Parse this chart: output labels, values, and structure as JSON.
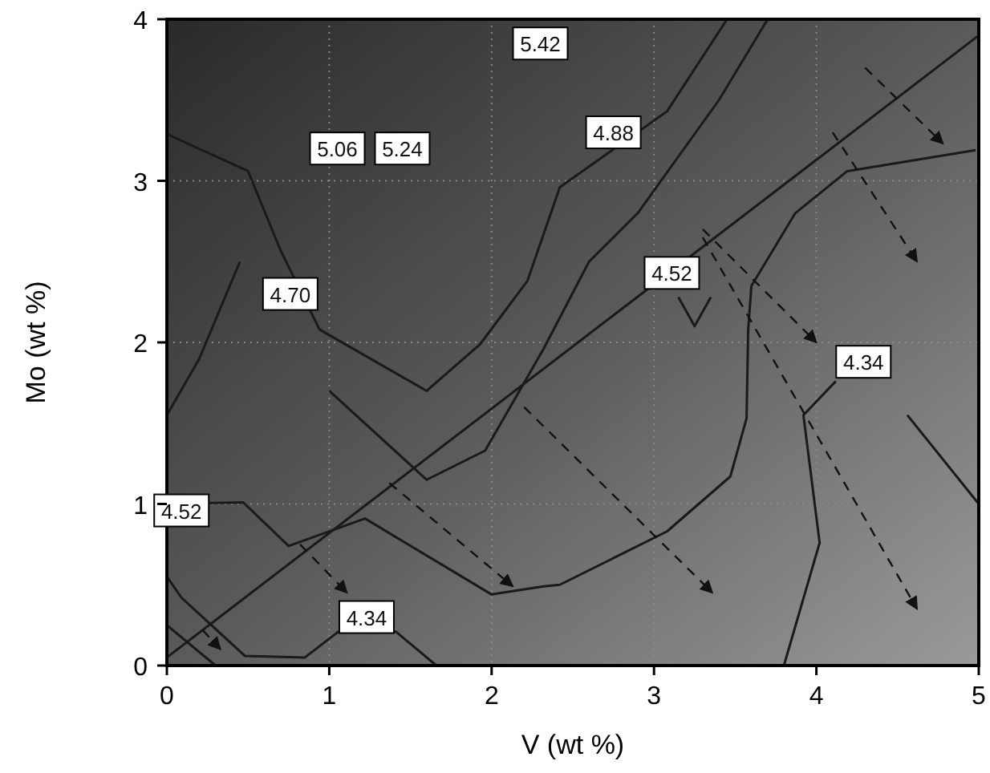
{
  "chart_data": {
    "type": "line",
    "xlabel": "V (wt %)",
    "ylabel": "Mo (wt %)",
    "xlim": [
      0,
      5
    ],
    "ylim": [
      0,
      4
    ],
    "xticks": [
      0,
      1,
      2,
      3,
      4,
      5
    ],
    "yticks": [
      0,
      1,
      2,
      3,
      4
    ],
    "grid": true,
    "marker": "none",
    "line_style": "solid",
    "series": [
      {
        "color": "#1a1a1a",
        "x": [
          0,
          0.5,
          0.7,
          0.94,
          1.6,
          1.93,
          2.22,
          2.42,
          3.08,
          3.45
        ],
        "values": [
          3.29,
          3.06,
          2.57,
          2.08,
          1.7,
          1.99,
          2.38,
          2.96,
          3.43,
          4
        ]
      },
      {
        "color": "#1a1a1a",
        "x": [
          0,
          0.2,
          0.45,
          0.7,
          1.0,
          1.6,
          1.96,
          2.32,
          2.6,
          2.9,
          3.4,
          3.7
        ],
        "values": [
          1.55,
          1.9,
          2.5,
          null,
          1.7,
          1.15,
          1.33,
          1.96,
          2.5,
          2.8,
          3.5,
          4
        ]
      },
      {
        "color": "#1a1a1a",
        "x": [
          0,
          0.47,
          0.75,
          1.22,
          2.0,
          2.32,
          2.42,
          3.08,
          3.47,
          3.57,
          3.58,
          3.6,
          3.87,
          4.19,
          4.98
        ],
        "values": [
          1.0,
          1.01,
          0.74,
          0.91,
          0.44,
          0.49,
          0.5,
          0.83,
          1.17,
          1.53,
          2.08,
          2.35,
          2.8,
          3.06,
          3.19
        ]
      },
      {
        "color": "#1a1a1a",
        "x": [
          3.15,
          3.25,
          3.35
        ],
        "values": [
          2.28,
          2.1,
          2.28
        ]
      },
      {
        "color": "#1a1a1a",
        "x": [
          0,
          0.09,
          0.48,
          0.85,
          1.07,
          1.41,
          1.66
        ],
        "values": [
          0.55,
          0.42,
          0.06,
          0.05,
          0.22,
          0.21,
          0
        ]
      },
      {
        "color": "#1a1a1a",
        "x": [
          0,
          0.3
        ],
        "values": [
          0.25,
          0
        ]
      },
      {
        "color": "#1a1a1a",
        "x": [
          3.8,
          4.02,
          3.92,
          4.12,
          4.3,
          4.56,
          5
        ],
        "values": [
          0,
          0.76,
          1.55,
          1.76,
          null,
          1.55,
          1.0
        ]
      },
      {
        "color": "#1a1a1a",
        "x": [
          0,
          5
        ],
        "values": [
          0.05,
          3.9
        ]
      }
    ],
    "annotations": [
      {
        "text": "5.42",
        "x": 2.3,
        "y": 3.85
      },
      {
        "text": "5.06",
        "x": 1.05,
        "y": 3.2
      },
      {
        "text": "5.24",
        "x": 1.45,
        "y": 3.2
      },
      {
        "text": "4.88",
        "x": 2.75,
        "y": 3.3
      },
      {
        "text": "4.70",
        "x": 0.76,
        "y": 2.3
      },
      {
        "text": "4.52",
        "x": 3.11,
        "y": 2.43
      },
      {
        "text": "4.34",
        "x": 4.29,
        "y": 1.88
      },
      {
        "text": "4.52",
        "x": 0.09,
        "y": 0.96
      },
      {
        "text": "4.34",
        "x": 1.23,
        "y": 0.3
      }
    ]
  }
}
